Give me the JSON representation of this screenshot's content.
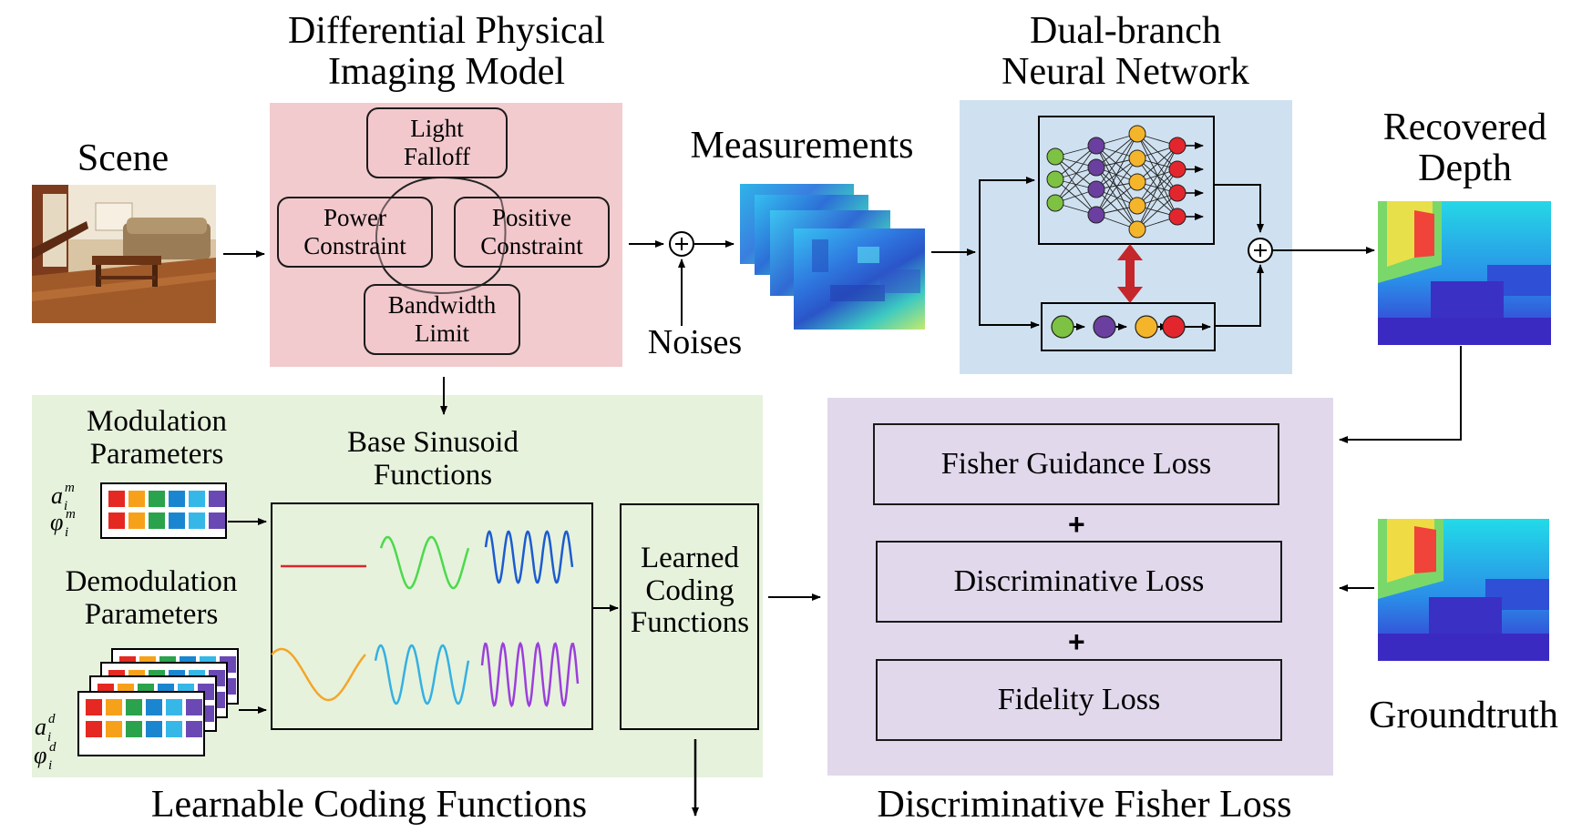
{
  "scene": {
    "label": "Scene"
  },
  "imaging_model": {
    "title": "Differential Physical\nImaging Model",
    "components": [
      "Light\nFalloff",
      "Power\nConstraint",
      "Positive\nConstraint",
      "Bandwidth\nLimit"
    ]
  },
  "measurements": {
    "label": "Measurements",
    "noise_label": "Noises"
  },
  "network": {
    "title": "Dual-branch\nNeural Network"
  },
  "recovered": {
    "label": "Recovered\nDepth"
  },
  "groundtruth": {
    "label": "Groundtruth"
  },
  "coding": {
    "title": "Learnable Coding Functions",
    "modulation_label": "Modulation\nParameters",
    "demodulation_label": "Demodulation\nParameters",
    "base_label": "Base Sinusoid\nFunctions",
    "learned_label": "Learned\nCoding\nFunctions"
  },
  "loss": {
    "title": "Discriminative Fisher Loss",
    "terms": [
      "Fisher Guidance Loss",
      "Discriminative Loss",
      "Fidelity Loss"
    ],
    "plus": "+"
  },
  "colors": {
    "imaging_bg": "#f2cbce",
    "network_bg": "#cfe1f0",
    "coding_bg": "#e6f2dc",
    "loss_bg": "#e1d8ec",
    "red_arrow": "#c4262c",
    "node_green": "#7dc242",
    "node_purple": "#6b3fa0",
    "node_orange": "#f4b52b",
    "node_red": "#e3262d",
    "palette": [
      "#e52821",
      "#f7a11a",
      "#2ba24c",
      "#1b86d0",
      "#35b8e8",
      "#6b49b4"
    ]
  }
}
